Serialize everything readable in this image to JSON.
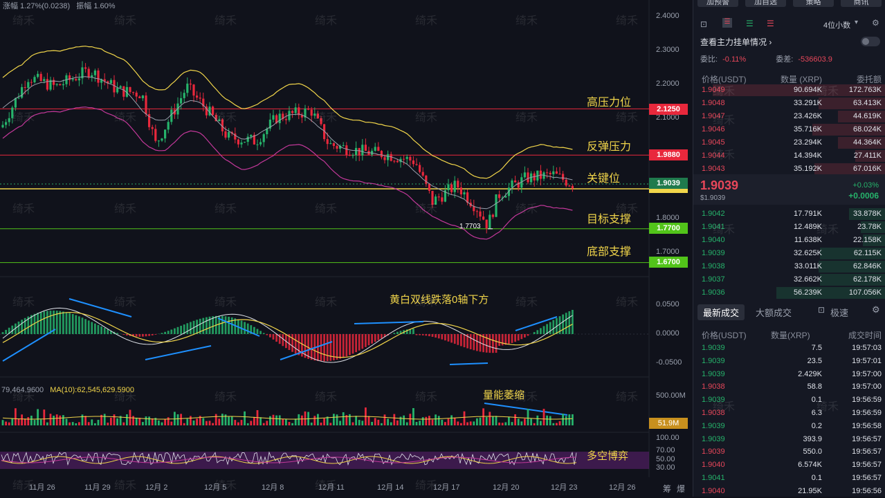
{
  "header": {
    "change": "涨幅 1.27%(0.0238)",
    "amplitude": "振幅 1.60%"
  },
  "watermark": "绮禾",
  "price_axis": [
    "2.4000",
    "2.3000",
    "2.2000",
    "2.1000",
    "1.8000",
    "1.7000"
  ],
  "levels": {
    "resistance_high": {
      "label": "高压力位",
      "value": "2.1250",
      "color": "#e8283c"
    },
    "rebound": {
      "label": "反弹压力",
      "value": "1.9880",
      "color": "#e8283c"
    },
    "key": {
      "label": "关键位",
      "value": "1.9039",
      "color": "#f1d54a"
    },
    "target": {
      "label": "目标支撑",
      "value": "1.7700",
      "color": "#52c41a"
    },
    "bottom": {
      "label": "底部支撑",
      "value": "1.6700",
      "color": "#52c41a"
    }
  },
  "low_marker": "1.7703",
  "macd": {
    "annotation": "黄白双线跌落0轴下方",
    "axis": [
      "0.0500",
      "0.0000",
      "-0.0500"
    ]
  },
  "volume": {
    "header_left": "79,464.9600",
    "ma_label": "MA(10):62,545,629.5900",
    "annotation": "量能萎缩",
    "axis": [
      "500.00M"
    ],
    "current": "51.9M"
  },
  "rsi": {
    "annotation": "多空博弈",
    "axis": [
      "100.00",
      "70.00",
      "50.00",
      "30.00"
    ]
  },
  "dates": [
    "11月 26",
    "11月 29",
    "12月 2",
    "12月 5",
    "12月 8",
    "12月 11",
    "12月 14",
    "12月 17",
    "12月 20",
    "12月 23",
    "12月 26"
  ],
  "bottom_right": {
    "a": "筹",
    "b": "爆"
  },
  "panel": {
    "buttons": [
      "加预警",
      "加自选",
      "策略",
      "商讯"
    ],
    "precision": "4位小数",
    "orders_title": "查看主力挂单情况",
    "ratio_label": "委比:",
    "ratio": "-0.11%",
    "diff_label": "委差:",
    "diff": "-536603.9",
    "headers": {
      "price": "价格(USDT)",
      "qty": "数量 (XRP)",
      "total": "委托额"
    },
    "asks": [
      {
        "price": "1.9049",
        "qty": "90.694K",
        "total": "172.763K",
        "w": 0.9
      },
      {
        "price": "1.9048",
        "qty": "33.291K",
        "total": "63.413K",
        "w": 0.35
      },
      {
        "price": "1.9047",
        "qty": "23.426K",
        "total": "44.619K",
        "w": 0.25
      },
      {
        "price": "1.9046",
        "qty": "35.716K",
        "total": "68.024K",
        "w": 0.38
      },
      {
        "price": "1.9045",
        "qty": "23.294K",
        "total": "44.364K",
        "w": 0.25
      },
      {
        "price": "1.9044",
        "qty": "14.394K",
        "total": "27.411K",
        "w": 0.16
      },
      {
        "price": "1.9043",
        "qty": "35.192K",
        "total": "67.016K",
        "w": 0.37
      }
    ],
    "last_price": "1.9039",
    "last_usd": "$1.9039",
    "last_pct": "+0.03%",
    "last_abs": "+0.0006",
    "bids": [
      {
        "price": "1.9042",
        "qty": "17.791K",
        "total": "33.878K",
        "w": 0.19
      },
      {
        "price": "1.9041",
        "qty": "12.489K",
        "total": "23.78K",
        "w": 0.13
      },
      {
        "price": "1.9040",
        "qty": "11.638K",
        "total": "22.158K",
        "w": 0.12
      },
      {
        "price": "1.9039",
        "qty": "32.625K",
        "total": "62.115K",
        "w": 0.34
      },
      {
        "price": "1.9038",
        "qty": "33.011K",
        "total": "62.846K",
        "w": 0.35
      },
      {
        "price": "1.9037",
        "qty": "32.662K",
        "total": "62.178K",
        "w": 0.34
      },
      {
        "price": "1.9036",
        "qty": "56.239K",
        "total": "107.056K",
        "w": 0.57
      }
    ],
    "tabs": [
      "最新成交",
      "大额成交",
      "极速"
    ],
    "trade_headers": {
      "price": "价格(USDT)",
      "qty": "数量(XRP)",
      "time": "成交时间"
    },
    "trades": [
      {
        "price": "1.9039",
        "qty": "7.5",
        "time": "19:57:03",
        "side": "buy"
      },
      {
        "price": "1.9039",
        "qty": "23.5",
        "time": "19:57:01",
        "side": "buy"
      },
      {
        "price": "1.9039",
        "qty": "2.429K",
        "time": "19:57:00",
        "side": "buy"
      },
      {
        "price": "1.9038",
        "qty": "58.8",
        "time": "19:57:00",
        "side": "sell"
      },
      {
        "price": "1.9039",
        "qty": "0.1",
        "time": "19:56:59",
        "side": "buy"
      },
      {
        "price": "1.9038",
        "qty": "6.3",
        "time": "19:56:59",
        "side": "sell"
      },
      {
        "price": "1.9039",
        "qty": "0.2",
        "time": "19:56:58",
        "side": "buy"
      },
      {
        "price": "1.9039",
        "qty": "393.9",
        "time": "19:56:57",
        "side": "buy"
      },
      {
        "price": "1.9039",
        "qty": "550.0",
        "time": "19:56:57",
        "side": "sell"
      },
      {
        "price": "1.9040",
        "qty": "6.574K",
        "time": "19:56:57",
        "side": "sell"
      },
      {
        "price": "1.9041",
        "qty": "0.1",
        "time": "19:56:57",
        "side": "buy"
      },
      {
        "price": "1.9040",
        "qty": "21.95K",
        "time": "19:56:56",
        "side": "sell"
      }
    ]
  }
}
